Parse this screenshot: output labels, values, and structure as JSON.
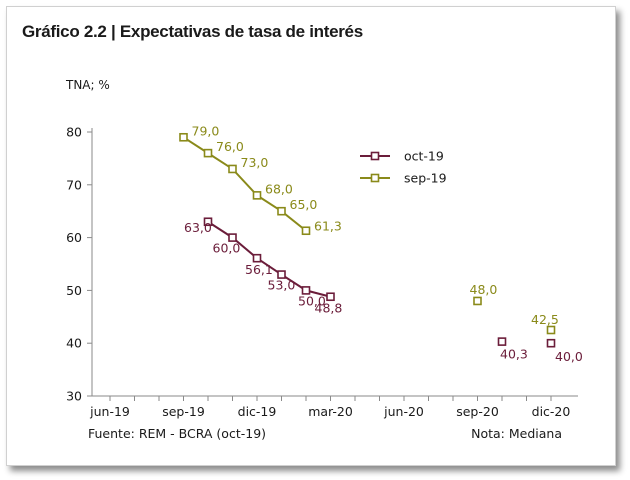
{
  "title": "Gráfico 2.2 | Expectativas de tasa de interés",
  "source_note": "Fuente: REM - BCRA (oct-19)",
  "right_note": "Nota: Mediana",
  "chart_data": {
    "type": "line",
    "ylabel": "TNA; %",
    "ylim": [
      30,
      80
    ],
    "yticks": [
      30,
      40,
      50,
      60,
      70,
      80
    ],
    "x_tick_labels": [
      "jun-19",
      "sep-19",
      "dic-19",
      "mar-20",
      "jun-20",
      "sep-20",
      "dic-20"
    ],
    "legend_position": "top-right",
    "series": [
      {
        "name": "oct-19",
        "color": "#6b1d3a",
        "segments": [
          {
            "points": [
              {
                "x": "oct-19",
                "y": 63.0,
                "label": "63,0"
              },
              {
                "x": "nov-19",
                "y": 60.0,
                "label": "60,0"
              },
              {
                "x": "dic-19",
                "y": 56.1,
                "label": "56,1"
              },
              {
                "x": "ene-20",
                "y": 53.0,
                "label": "53,0"
              },
              {
                "x": "feb-20",
                "y": 50.0,
                "label": "50,0"
              },
              {
                "x": "mar-20",
                "y": 48.8,
                "label": "48,8"
              }
            ]
          },
          {
            "points": [
              {
                "x": "oct-20",
                "y": 40.3,
                "label": "40,3"
              }
            ]
          },
          {
            "points": [
              {
                "x": "dic-20",
                "y": 40.0,
                "label": "40,0"
              }
            ]
          }
        ]
      },
      {
        "name": "sep-19",
        "color": "#8a8a1a",
        "segments": [
          {
            "points": [
              {
                "x": "sep-19",
                "y": 79.0,
                "label": "79,0"
              },
              {
                "x": "oct-19",
                "y": 76.0,
                "label": "76,0"
              },
              {
                "x": "nov-19",
                "y": 73.0,
                "label": "73,0"
              },
              {
                "x": "dic-19",
                "y": 68.0,
                "label": "68,0"
              },
              {
                "x": "ene-20",
                "y": 65.0,
                "label": "65,0"
              },
              {
                "x": "feb-20",
                "y": 61.3,
                "label": "61,3"
              }
            ]
          },
          {
            "points": [
              {
                "x": "sep-20",
                "y": 48.0,
                "label": "48,0"
              }
            ]
          },
          {
            "points": [
              {
                "x": "dic-20",
                "y": 42.5,
                "label": "42,5"
              }
            ]
          }
        ]
      }
    ]
  }
}
